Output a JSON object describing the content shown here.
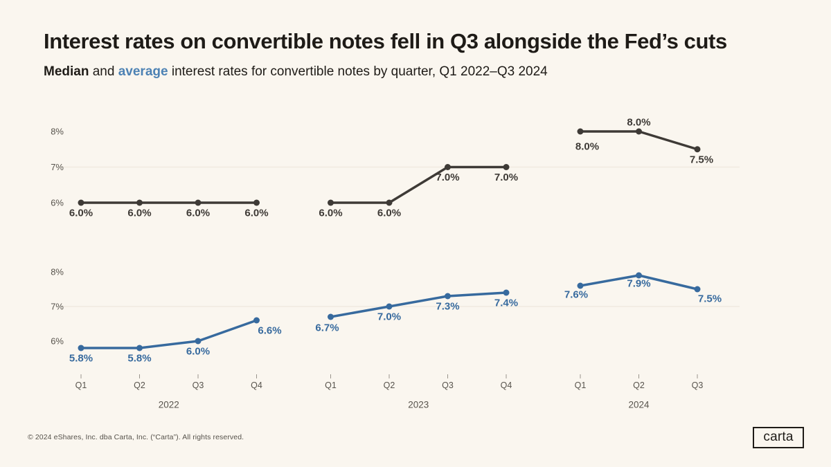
{
  "header": {
    "title": "Interest rates on convertible notes fell in Q3 alongside the Fed’s cuts",
    "subtitle": {
      "median_word": "Median",
      "connector": " and ",
      "average_word": "average",
      "rest": " interest rates for convertible notes by quarter, Q1 2022–Q3 2024"
    }
  },
  "footer": {
    "copyright": "© 2024 eShares, Inc. dba Carta, Inc. (“Carta”). All rights reserved.",
    "logo_text": "carta"
  },
  "colors": {
    "background": "#FAF6EF",
    "title_text": "#1E1B17",
    "median": "#3E3A36",
    "average": "#376A9E",
    "average_accent_text": "#4D82B4",
    "axis_text": "#57534C",
    "gridline": "#F0EAE0",
    "tick_mark": "#99948C",
    "footer_text": "#56524B"
  },
  "chart_data": {
    "type": "line",
    "title": "Interest rates on convertible notes fell in Q3 alongside the Fed’s cuts",
    "subtitle": "Median and average interest rates for convertible notes by quarter, Q1 2022–Q3 2024",
    "unit": "%",
    "layout_hint": "two stacked small-multiple panels sharing one x-axis; Median (dark) on top, Average (blue) below; grid off except one faint line at 7% per panel; point labels shown for every point",
    "y_tick_labels": [
      "8%",
      "7%",
      "6%"
    ],
    "y_tick_values": [
      8,
      7,
      6
    ],
    "gridline_at": 7,
    "ylim": [
      5.5,
      8.5
    ],
    "groups": [
      {
        "year": "2022",
        "quarters": [
          "Q1",
          "Q2",
          "Q3",
          "Q4"
        ]
      },
      {
        "year": "2023",
        "quarters": [
          "Q1",
          "Q2",
          "Q3",
          "Q4"
        ]
      },
      {
        "year": "2024",
        "quarters": [
          "Q1",
          "Q2",
          "Q3"
        ]
      }
    ],
    "series": [
      {
        "name": "Median",
        "panel": "top",
        "color": "#3E3A36",
        "values": [
          [
            6.0,
            6.0,
            6.0,
            6.0
          ],
          [
            6.0,
            6.0,
            7.0,
            7.0
          ],
          [
            8.0,
            8.0,
            7.5
          ]
        ],
        "point_labels": [
          [
            "6.0%",
            "6.0%",
            "6.0%",
            "6.0%"
          ],
          [
            "6.0%",
            "6.0%",
            "7.0%",
            "7.0%"
          ],
          [
            "8.0%",
            "8.0%",
            "7.5%"
          ]
        ]
      },
      {
        "name": "Average",
        "panel": "bottom",
        "color": "#376A9E",
        "values": [
          [
            5.8,
            5.8,
            6.0,
            6.6
          ],
          [
            6.7,
            7.0,
            7.3,
            7.4
          ],
          [
            7.6,
            7.9,
            7.5
          ]
        ],
        "point_labels": [
          [
            "5.8%",
            "5.8%",
            "6.0%",
            "6.6%"
          ],
          [
            "6.7%",
            "7.0%",
            "7.3%",
            "7.4%"
          ],
          [
            "7.6%",
            "7.9%",
            "7.5%"
          ]
        ]
      }
    ]
  }
}
